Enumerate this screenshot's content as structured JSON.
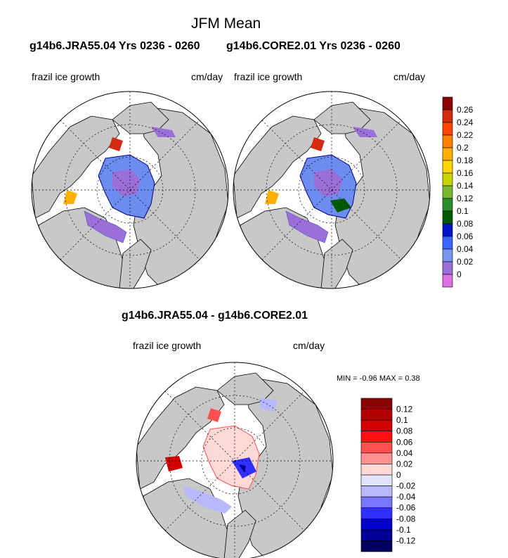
{
  "title": "JFM Mean",
  "runs": {
    "left": "g14b6.JRA55.04  Yrs 0236 - 0260",
    "right": "g14b6.CORE2.01  Yrs 0236 - 0260"
  },
  "panels": {
    "left": {
      "variable": "frazil ice growth",
      "units": "cm/day"
    },
    "right": {
      "variable": "frazil ice growth",
      "units": "cm/day"
    }
  },
  "colorbar_top": {
    "labels": [
      "0.26",
      "0.24",
      "0.22",
      "0.2",
      "0.18",
      "0.16",
      "0.14",
      "0.12",
      "0.1",
      "0.08",
      "0.06",
      "0.04",
      "0.02",
      "0"
    ],
    "colors": [
      "#8b0000",
      "#d42a10",
      "#ff4500",
      "#ff7f00",
      "#ffb000",
      "#ffd700",
      "#c8d400",
      "#7ab830",
      "#2a8c2a",
      "#005a00",
      "#0014c8",
      "#3c64ff",
      "#7896f0",
      "#9a70d8",
      "#e070e0"
    ]
  },
  "diff": {
    "header": "g14b6.JRA55.04 - g14b6.CORE2.01",
    "variable": "frazil ice growth",
    "units": "cm/day",
    "stats": "MIN =  -0.96 MAX =   0.38"
  },
  "colorbar_bottom": {
    "labels": [
      "0.12",
      "0.1",
      "0.08",
      "0.06",
      "0.04",
      "0.02",
      "0",
      "-0.02",
      "-0.04",
      "-0.06",
      "-0.08",
      "-0.1",
      "-0.12"
    ],
    "colors": [
      "#8b0000",
      "#b00000",
      "#d40000",
      "#ff1010",
      "#ff5050",
      "#ff9090",
      "#ffd8d8",
      "#e4e4ff",
      "#b8b8ff",
      "#7878ff",
      "#3030ff",
      "#0000cc",
      "#000098",
      "#000060"
    ]
  },
  "map_colors": {
    "land": "#c8c8c8",
    "ocean": "#ffffff"
  }
}
